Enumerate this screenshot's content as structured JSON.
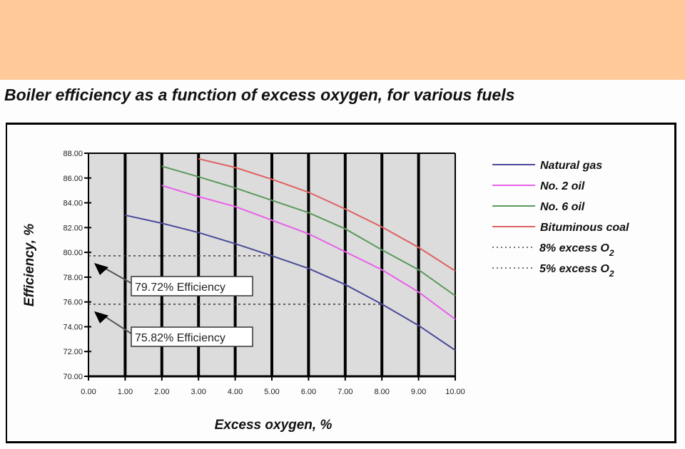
{
  "header": {
    "banner_color": "#ffc999"
  },
  "chart_data": {
    "type": "line",
    "title": "Boiler efficiency as a function of excess oxygen, for various fuels",
    "xlabel": "Excess oxygen, %",
    "ylabel": "Efficiency, %",
    "xlim": [
      0,
      10
    ],
    "ylim": [
      70,
      88
    ],
    "xticks": [
      "0.00",
      "1.00",
      "2.00",
      "3.00",
      "4.00",
      "5.00",
      "6.00",
      "7.00",
      "8.00",
      "9.00",
      "10.00"
    ],
    "yticks": [
      "70.00",
      "72.00",
      "74.00",
      "76.00",
      "78.00",
      "80.00",
      "82.00",
      "84.00",
      "86.00",
      "88.00"
    ],
    "grid": "vertical",
    "legend": "right",
    "series": [
      {
        "name": "Natural gas",
        "color": "#4a4a9a",
        "x": [
          1,
          2,
          3,
          4,
          5,
          6,
          7,
          8,
          9,
          10
        ],
        "y": [
          83.0,
          82.35,
          81.6,
          80.7,
          79.72,
          78.7,
          77.4,
          75.82,
          74.1,
          72.1
        ]
      },
      {
        "name": "No. 2 oil",
        "color": "#e860e8",
        "x": [
          2,
          3,
          4,
          5,
          6,
          7,
          8,
          9,
          10
        ],
        "y": [
          85.4,
          84.5,
          83.7,
          82.6,
          81.5,
          80.05,
          78.6,
          76.8,
          74.6
        ]
      },
      {
        "name": "No. 6 oil",
        "color": "#5a9a5a",
        "x": [
          2,
          3,
          4,
          5,
          6,
          7,
          8,
          9,
          10
        ],
        "y": [
          86.95,
          86.1,
          85.2,
          84.2,
          83.2,
          81.9,
          80.2,
          78.6,
          76.5
        ]
      },
      {
        "name": "Bituminous coal",
        "color": "#e06060",
        "x": [
          3,
          4,
          5,
          6,
          7,
          8,
          9,
          10
        ],
        "y": [
          87.55,
          86.85,
          85.9,
          84.85,
          83.5,
          82.05,
          80.4,
          78.5
        ]
      }
    ],
    "reference_lines": [
      {
        "name": "8% excess O",
        "sub": "2",
        "y": 75.82,
        "x_end": 8
      },
      {
        "name": "5% excess O",
        "sub": "2",
        "y": 79.72,
        "x_end": 5
      }
    ],
    "annotations": [
      {
        "text": "79.72% Efficiency",
        "y": 79.72
      },
      {
        "text": "75.82% Efficiency",
        "y": 75.82
      }
    ]
  }
}
